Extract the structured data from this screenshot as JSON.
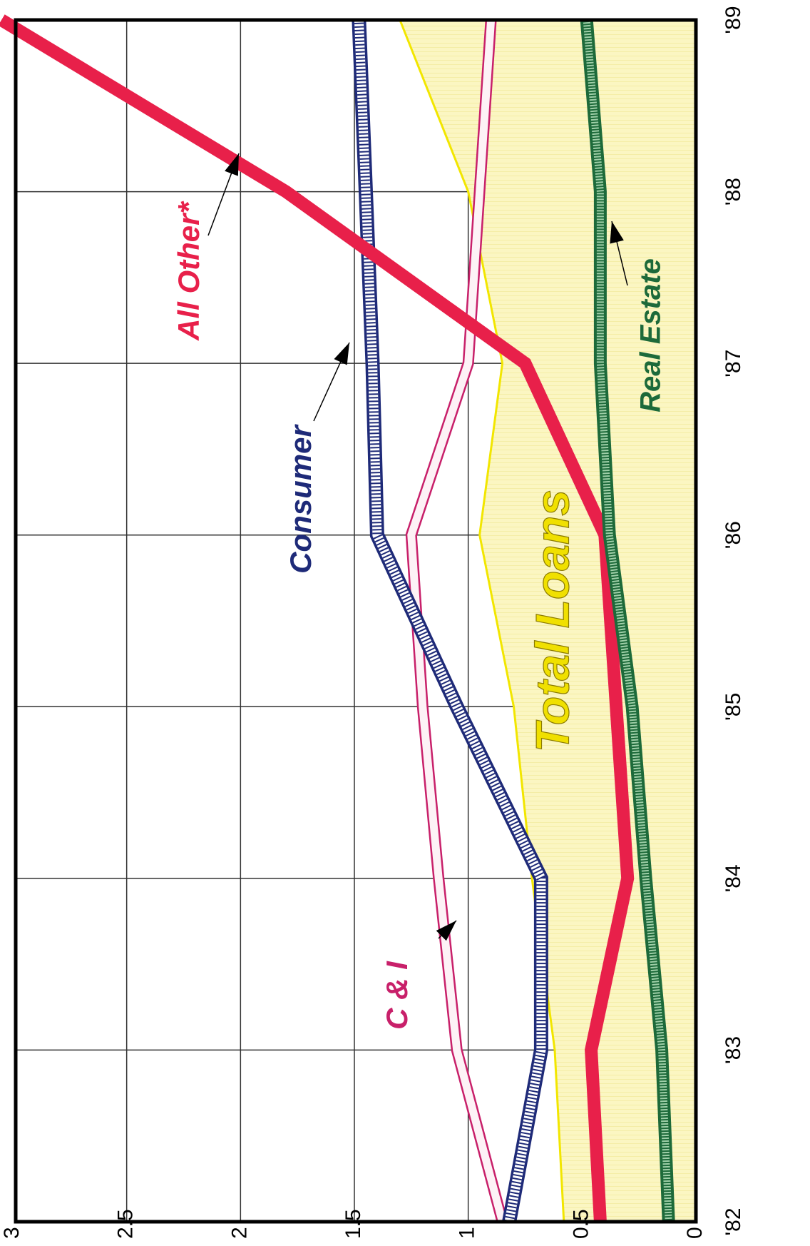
{
  "chart_data": {
    "type": "line",
    "orientation": "rotated-90-clockwise",
    "x": [
      "'82",
      "'83",
      "'84",
      "'85",
      "'86",
      "'87",
      "'88",
      "'89"
    ],
    "y_ticks": [
      "0",
      "0.5",
      "1",
      "1.5",
      "2",
      "2.5",
      "3"
    ],
    "ylim": [
      0,
      3
    ],
    "grid": true,
    "series": [
      {
        "name": "Total Loans",
        "style": "band",
        "color": "#f2e600",
        "values": [
          0.58,
          0.62,
          0.72,
          0.8,
          0.95,
          0.85,
          1.0,
          1.3
        ]
      },
      {
        "name": "C & I",
        "style": "double-line",
        "color": "#c8206a",
        "values": [
          0.85,
          1.05,
          1.13,
          1.2,
          1.25,
          1.0,
          0.95,
          0.9
        ]
      },
      {
        "name": "Consumer",
        "style": "hatched",
        "color": "#1e2a78",
        "values": [
          0.82,
          0.68,
          0.68,
          1.05,
          1.4,
          1.42,
          1.45,
          1.48
        ]
      },
      {
        "name": "All Other*",
        "style": "thick",
        "color": "#e8204a",
        "values": [
          0.42,
          0.46,
          0.3,
          0.35,
          0.4,
          0.75,
          1.8,
          3.05
        ]
      },
      {
        "name": "Real Estate",
        "style": "crosshatch",
        "color": "#1d6a3a",
        "values": [
          0.12,
          0.15,
          0.22,
          0.28,
          0.38,
          0.42,
          0.42,
          0.48
        ]
      }
    ]
  },
  "colors": {
    "grid": "#333333",
    "frame": "#000000",
    "band_fill": "#fbf6b8"
  }
}
